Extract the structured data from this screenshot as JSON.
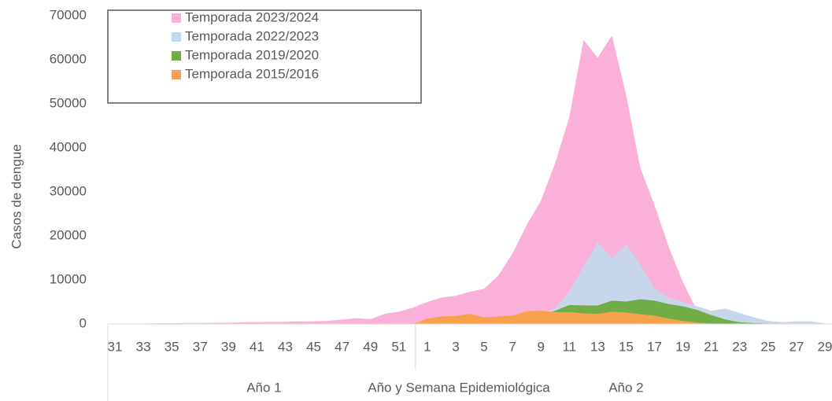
{
  "chart_data": {
    "type": "area",
    "x_label": "Año y Semana Epidemiológica",
    "y_label": "Casos de dengue",
    "categories": [
      "31",
      null,
      "33",
      null,
      "35",
      null,
      "37",
      null,
      "39",
      null,
      "41",
      null,
      "43",
      null,
      "45",
      null,
      "47",
      null,
      "49",
      null,
      "51",
      null,
      "1",
      null,
      "3",
      null,
      "5",
      null,
      "7",
      null,
      "9",
      null,
      "11",
      null,
      "13",
      null,
      "15",
      null,
      "17",
      null,
      "19",
      null,
      "21",
      null,
      "23",
      null,
      "25",
      null,
      "27",
      null,
      "29"
    ],
    "groups": [
      {
        "name": "Año 1",
        "count": 22
      },
      {
        "name": "Año 2",
        "count": 29
      }
    ],
    "ylim": [
      0,
      70000
    ],
    "yticks": [
      0,
      10000,
      20000,
      30000,
      40000,
      50000,
      60000,
      70000
    ],
    "legend": "upper left",
    "series": [
      {
        "name": "Temporada 2023/2024",
        "color": "#fbb0d9",
        "values": [
          100,
          100,
          100,
          150,
          150,
          200,
          200,
          250,
          300,
          350,
          400,
          450,
          500,
          550,
          600,
          700,
          1000,
          1300,
          1100,
          2300,
          2800,
          3700,
          5000,
          6000,
          6400,
          7300,
          8000,
          11000,
          16000,
          22500,
          28000,
          36500,
          47000,
          64500,
          60500,
          65500,
          52000,
          35500,
          27000,
          17500,
          9500,
          3000,
          1500,
          700,
          400,
          200,
          100,
          100,
          100,
          50,
          50
        ]
      },
      {
        "name": "Temporada 2022/2023",
        "color": "#c7d6ea",
        "values": [
          100,
          100,
          100,
          100,
          100,
          100,
          100,
          100,
          100,
          100,
          100,
          100,
          100,
          100,
          100,
          100,
          100,
          100,
          100,
          100,
          100,
          100,
          300,
          400,
          500,
          600,
          700,
          900,
          1200,
          1800,
          2500,
          3500,
          7500,
          13000,
          18500,
          15000,
          18000,
          13500,
          8000,
          6000,
          5000,
          4000,
          3000,
          3500,
          2500,
          1500,
          700,
          400,
          600,
          600,
          100
        ]
      },
      {
        "name": "Temporada 2019/2020",
        "color": "#70ad47",
        "values": [
          0,
          0,
          0,
          0,
          0,
          0,
          0,
          0,
          0,
          0,
          0,
          0,
          0,
          0,
          0,
          0,
          0,
          0,
          0,
          0,
          0,
          0,
          200,
          300,
          400,
          500,
          600,
          800,
          1000,
          1500,
          2000,
          3000,
          4300,
          4200,
          4200,
          5300,
          5100,
          5600,
          5300,
          4500,
          4000,
          3200,
          2000,
          1000,
          400,
          200,
          100,
          50,
          50,
          50,
          50
        ]
      },
      {
        "name": "Temporada 2015/2016",
        "color": "#f7a24b",
        "values": [
          0,
          0,
          0,
          0,
          0,
          0,
          0,
          0,
          0,
          0,
          0,
          0,
          0,
          0,
          0,
          0,
          0,
          0,
          0,
          0,
          0,
          0,
          1200,
          1700,
          1800,
          2300,
          1500,
          1700,
          1900,
          2900,
          3000,
          2700,
          2700,
          2400,
          2300,
          2800,
          2600,
          2200,
          1900,
          1200,
          700,
          300,
          100,
          0,
          0,
          0,
          0,
          0,
          0,
          0,
          0
        ]
      }
    ]
  }
}
